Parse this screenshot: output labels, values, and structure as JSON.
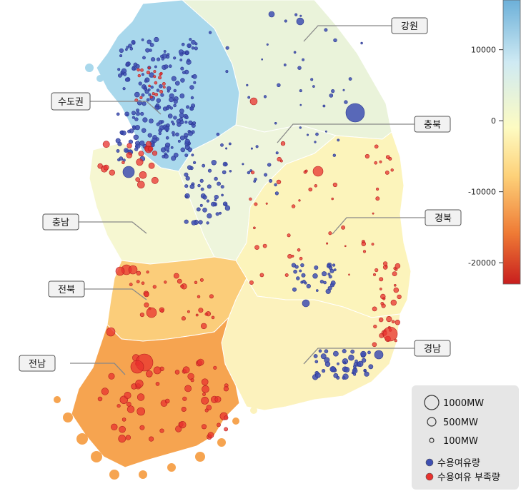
{
  "colorbar": {
    "ticks": [
      "10000",
      "0",
      "-10000",
      "-20000"
    ],
    "tick_values": [
      10000,
      0,
      -10000,
      -20000
    ],
    "range": [
      -23000,
      17000
    ],
    "colors": [
      "#c81e1e",
      "#ef7b35",
      "#fdd179",
      "#fdfbc2",
      "#cfeaf3",
      "#6cb0d9"
    ]
  },
  "regions": [
    {
      "id": "gangwon",
      "label": "강원",
      "fill": "#eaf3da"
    },
    {
      "id": "sudogwon",
      "label": "수도권",
      "fill": "#a9d8ec"
    },
    {
      "id": "chungbuk",
      "label": "충북",
      "fill": "#eef5dc"
    },
    {
      "id": "chungnam",
      "label": "충남",
      "fill": "#f6f7d1"
    },
    {
      "id": "gyeongbuk",
      "label": "경북",
      "fill": "#fcf4bb"
    },
    {
      "id": "jeonbuk",
      "label": "전북",
      "fill": "#fbcd7a"
    },
    {
      "id": "gyeongnam",
      "label": "경남",
      "fill": "#fcf2bd"
    },
    {
      "id": "jeonnam",
      "label": "전남",
      "fill": "#f6a450"
    }
  ],
  "legend": {
    "size_labels": [
      "1000MW",
      "500MW",
      "100MW"
    ],
    "surplus_label": "수용여유량",
    "deficit_label": "수용여유 부족량",
    "surplus_color": "#3e4fb2",
    "deficit_color": "#e8322e"
  }
}
